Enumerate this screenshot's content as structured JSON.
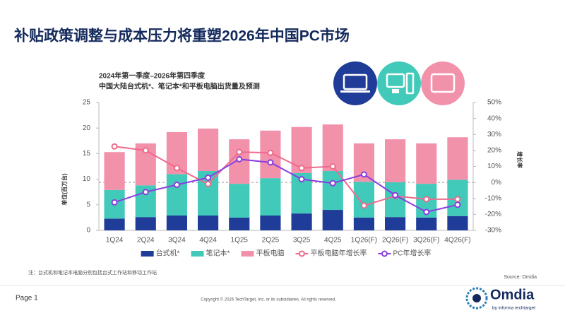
{
  "header": {
    "title": "补贴政策调整与成本压力将重塑2026年中国PC市场"
  },
  "chart_data": {
    "type": "bar",
    "stacked": true,
    "subtitle": [
      "2024年第一季度–2026年第四季度",
      "中国大陆台式机*、笔记本*和平板电脑出货量及预测"
    ],
    "ylabel": "单位(百万台)",
    "y2label": "增长率",
    "categories": [
      "1Q24",
      "2Q24",
      "3Q24",
      "4Q24",
      "1Q25",
      "2Q25",
      "3Q25",
      "4Q25",
      "1Q26(F)",
      "2Q26(F)",
      "3Q26(F)",
      "4Q26(F)"
    ],
    "series": [
      {
        "name": "台式机*",
        "type": "bar",
        "color": "#1f3c98",
        "values": [
          2.3,
          2.6,
          2.9,
          2.9,
          2.5,
          2.9,
          3.3,
          4.0,
          2.5,
          2.6,
          2.5,
          2.8
        ]
      },
      {
        "name": "笔记本*",
        "type": "bar",
        "color": "#41c9b9",
        "values": [
          5.6,
          6.2,
          8.1,
          8.7,
          6.6,
          7.3,
          7.9,
          7.6,
          7.0,
          6.8,
          6.6,
          7.1
        ]
      },
      {
        "name": "平板电脑",
        "type": "bar",
        "color": "#f291aa",
        "values": [
          7.4,
          8.2,
          8.2,
          8.3,
          8.7,
          9.3,
          9.0,
          9.1,
          7.5,
          8.4,
          7.9,
          8.3
        ]
      },
      {
        "name": "平板电脑年增长率",
        "type": "line",
        "axis": "y2",
        "color": "#f06a8c",
        "values": [
          22.5,
          20,
          9,
          -1,
          19,
          18.5,
          9,
          10,
          -14.5,
          -8.5,
          -10.5,
          -10.5
        ]
      },
      {
        "name": "PC年增长率",
        "type": "line",
        "axis": "y2",
        "color": "#8a3ee0",
        "values": [
          -12.5,
          -6,
          -1.5,
          3,
          14.5,
          12.5,
          2,
          -0.5,
          5,
          -8,
          -18.5,
          -14
        ]
      }
    ],
    "ylim": [
      0,
      25
    ],
    "yticks": [
      0,
      5,
      10,
      15,
      20,
      25
    ],
    "y2lim": [
      -30,
      50
    ],
    "y2ticks": [
      {
        "value": -30,
        "label": "-30%"
      },
      {
        "value": -20,
        "label": "-20%"
      },
      {
        "value": -10,
        "label": "-10%"
      },
      {
        "value": 0,
        "label": "0%"
      },
      {
        "value": 10,
        "label": "10%"
      },
      {
        "value": 20,
        "label": "20%"
      },
      {
        "value": 30,
        "label": "30%"
      },
      {
        "value": 40,
        "label": "40%"
      },
      {
        "value": 50,
        "label": "50%"
      }
    ],
    "legend": "bottom"
  },
  "footer": {
    "note": "注：台式机和笔记本电脑分别包括台式工作站和移动工作站",
    "source": "Source: Omdia",
    "page": "Page 1",
    "copyright": "Copyright © 2026 TechTarget, Inc. or its subsidiaries. All rights reserved.",
    "logo": "Omdia",
    "logo_sub": "by informa techtarget"
  }
}
